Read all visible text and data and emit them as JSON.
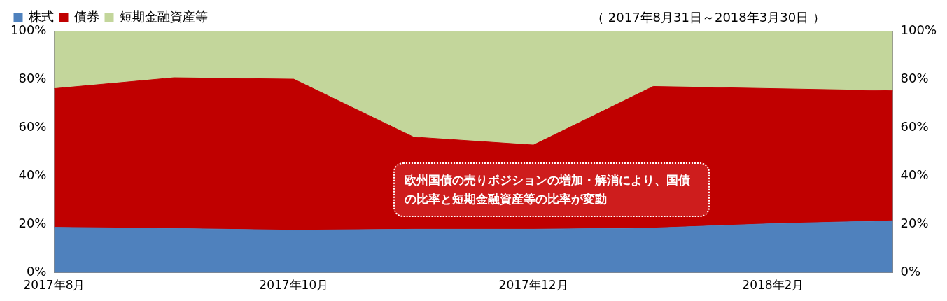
{
  "chart_data": {
    "type": "area",
    "stacked": true,
    "subtitle": "（ 2017年8月31日～2018年3月30日 ）",
    "categories": [
      "2017年8月",
      null,
      "2017年10月",
      null,
      "2017年12月",
      null,
      "2018年2月",
      null
    ],
    "series": [
      {
        "name": "株式",
        "color": "#4f81bd",
        "values": [
          18.8,
          18.3,
          17.6,
          18,
          18,
          18.5,
          20.3,
          21.5
        ]
      },
      {
        "name": "債券",
        "color": "#c00000",
        "values": [
          57.3,
          62.3,
          62.4,
          38.1,
          34.8,
          58.5,
          55.8,
          53.7
        ]
      },
      {
        "name": "短期金融資産等",
        "color": "#c3d69b",
        "values": [
          23.9,
          19.4,
          20,
          43.9,
          47.2,
          23,
          23.9,
          24.8
        ]
      }
    ],
    "ylim": [
      0,
      100
    ],
    "yticks": [
      {
        "value": 0,
        "label": "0%"
      },
      {
        "value": 20,
        "label": "20%"
      },
      {
        "value": 40,
        "label": "40%"
      },
      {
        "value": 60,
        "label": "60%"
      },
      {
        "value": 80,
        "label": "80%"
      },
      {
        "value": 100,
        "label": "100%"
      }
    ],
    "y2lim": [
      0,
      100
    ],
    "y2ticks": [
      {
        "value": 0,
        "label": "0%"
      },
      {
        "value": 20,
        "label": "20%"
      },
      {
        "value": 40,
        "label": "40%"
      },
      {
        "value": 60,
        "label": "60%"
      },
      {
        "value": 80,
        "label": "80%"
      },
      {
        "value": 100,
        "label": "100%"
      }
    ],
    "annotations": [
      {
        "text": "欧州国債の売りポジションの増加・解消により、国債の比率と短期金融資産等の比率が変動",
        "x": "2017年12月",
        "y": 53
      }
    ],
    "legend": "top left",
    "grid": false
  }
}
